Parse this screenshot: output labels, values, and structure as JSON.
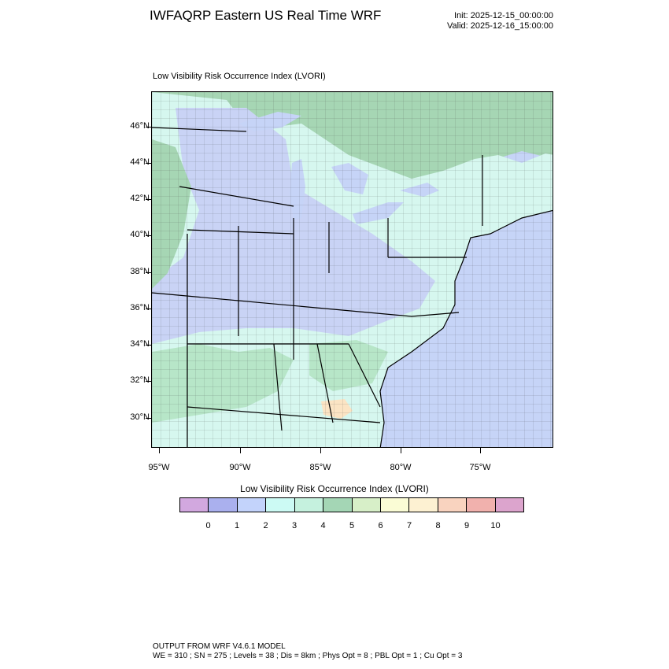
{
  "header": {
    "title": "IWFAQRP Eastern US Real Time WRF",
    "init": "Init: 2025-12-15_00:00:00",
    "valid": "Valid: 2025-12-16_15:00:00"
  },
  "map": {
    "title": "Low Visibility Risk Occurrence Index   (LVORI)",
    "lat_labels": [
      "46°N",
      "44°N",
      "42°N",
      "40°N",
      "38°N",
      "36°N",
      "34°N",
      "32°N",
      "30°N"
    ],
    "lon_labels": [
      "95°W",
      "90°W",
      "85°W",
      "80°W",
      "75°W"
    ],
    "colors": {
      "ocean": "#c6d4f7",
      "land_low": "#c9d3f5",
      "land_mid": "#d6f7ef",
      "land_green": "#b7e6c8",
      "land_deep": "#a6d6b4",
      "land_warm": "#fbe4c4",
      "land_pale": "#e6f5cf"
    }
  },
  "colorbar": {
    "title": "Low Visibility Risk Occurrence Index  (LVORI)",
    "colors": [
      "#d2a8df",
      "#aab0ee",
      "#c3d3fb",
      "#ccfaf4",
      "#c5f1de",
      "#a4d6b5",
      "#d7efc8",
      "#fafcd5",
      "#fdf1d2",
      "#f9d3bf",
      "#f1b1ad",
      "#dca4cd"
    ],
    "labels": [
      "0",
      "1",
      "2",
      "3",
      "4",
      "5",
      "6",
      "7",
      "8",
      "9",
      "10"
    ]
  },
  "footer": {
    "line1": "OUTPUT FROM WRF V4.6.1 MODEL",
    "line2": "WE = 310 ; SN = 275 ; Levels = 38 ; Dis = 8km ; Phys Opt = 8 ; PBL Opt = 1 ; Cu Opt = 3"
  }
}
